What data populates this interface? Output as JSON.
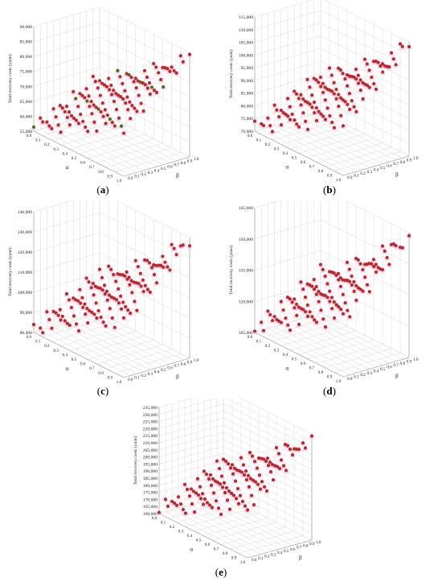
{
  "colors": {
    "point": "#c0262d",
    "point_dark": "#4d6b1a",
    "shadow": "#f6c6da",
    "grid": "#d9d9d9"
  },
  "chart_data": [
    {
      "type": "scatter",
      "label": "a",
      "zlabel": "Total recovery costs (yuan)",
      "xlabel": "α",
      "ylabel": "β",
      "x_ticks": [
        "0.0",
        "0.1",
        "0.2",
        "0.3",
        "0.4",
        "0.5",
        "0.6",
        "0.7",
        "0.8",
        "0.9",
        "1.0"
      ],
      "y_ticks": [
        "0.0",
        "0.1",
        "0.2",
        "0.3",
        "0.4",
        "0.5",
        "0.6",
        "0.7",
        "0.8",
        "0.9",
        "1.0"
      ],
      "z_ticks": [
        "55,000",
        "60,000",
        "65,000",
        "70,000",
        "75,000",
        "80,000",
        "85,000",
        "90,000"
      ],
      "zlim": [
        55000,
        90000
      ],
      "z_min_value": 55600,
      "z_max_value": 87000,
      "note": "z values lie on a surface over the α–β grid (0–1, step 0.1)"
    },
    {
      "type": "scatter",
      "label": "b",
      "zlabel": "Total recovery costs (yuan)",
      "xlabel": "α",
      "ylabel": "β",
      "x_ticks": [
        "0.0",
        "0.1",
        "0.2",
        "0.3",
        "0.4",
        "0.5",
        "0.6",
        "0.7",
        "0.8",
        "0.9",
        "1.0"
      ],
      "y_ticks": [
        "0.0",
        "0.1",
        "0.2",
        "0.3",
        "0.4",
        "0.5",
        "0.6",
        "0.7",
        "0.8",
        "0.9",
        "1.0"
      ],
      "z_ticks": [
        "70,000",
        "75,000",
        "80,000",
        "85,000",
        "90,000",
        "95,000",
        "100,000",
        "105,000",
        "110,000",
        "115,000"
      ],
      "zlim": [
        70000,
        115000
      ],
      "z_min_value": 74500,
      "z_max_value": 112000
    },
    {
      "type": "scatter",
      "label": "c",
      "zlabel": "Total recovery costs (yuan)",
      "xlabel": "α",
      "ylabel": "β",
      "x_ticks": [
        "0.0",
        "0.1",
        "0.2",
        "0.3",
        "0.4",
        "0.5",
        "0.6",
        "0.7",
        "0.8",
        "0.9",
        "1.0"
      ],
      "y_ticks": [
        "0.0",
        "0.1",
        "0.2",
        "0.3",
        "0.4",
        "0.5",
        "0.6",
        "0.7",
        "0.8",
        "0.9",
        "1.0"
      ],
      "z_ticks": [
        "80,000",
        "90,000",
        "100,000",
        "110,000",
        "120,000",
        "130,000",
        "140,000"
      ],
      "zlim": [
        80000,
        140000
      ],
      "z_min_value": 84000,
      "z_max_value": 137000
    },
    {
      "type": "scatter",
      "label": "d",
      "zlabel": "Total recovery costs (yuan)",
      "xlabel": "α",
      "ylabel": "β",
      "x_ticks": [
        "0.0",
        "0.1",
        "0.2",
        "0.3",
        "0.4",
        "0.5",
        "0.6",
        "0.7",
        "0.8",
        "0.9",
        "1.0"
      ],
      "y_ticks": [
        "0.0",
        "0.1",
        "0.2",
        "0.3",
        "0.4",
        "0.5",
        "0.6",
        "0.7",
        "0.8",
        "0.9",
        "1.0"
      ],
      "z_ticks": [
        "105,000",
        "120,000",
        "135,000",
        "150,000",
        "165,000"
      ],
      "zlim": [
        105000,
        165000
      ],
      "z_min_value": 106000,
      "z_max_value": 164000
    },
    {
      "type": "scatter",
      "label": "e",
      "zlabel": "Total recovery costs (yuan)",
      "xlabel": "α",
      "ylabel": "β",
      "x_ticks": [
        "0.0",
        "0.1",
        "0.2",
        "0.3",
        "0.4",
        "0.5",
        "0.6",
        "0.7",
        "0.8",
        "0.9",
        "1.0"
      ],
      "y_ticks": [
        "0.0",
        "0.1",
        "0.2",
        "0.3",
        "0.4",
        "0.5",
        "0.6",
        "0.7",
        "0.8",
        "0.9",
        "1.0"
      ],
      "z_ticks": [
        "160,000",
        "165,000",
        "170,000",
        "175,000",
        "180,000",
        "185,000",
        "190,000",
        "195,000",
        "200,000",
        "205,000",
        "210,000",
        "215,000",
        "220,000",
        "225,000",
        "230,000",
        "235,000"
      ],
      "zlim": [
        160000,
        235000
      ],
      "z_min_value": 161000,
      "z_max_value": 234000
    }
  ],
  "captions": {
    "a": "a",
    "b": "b",
    "c": "c",
    "d": "d",
    "e": "e"
  }
}
